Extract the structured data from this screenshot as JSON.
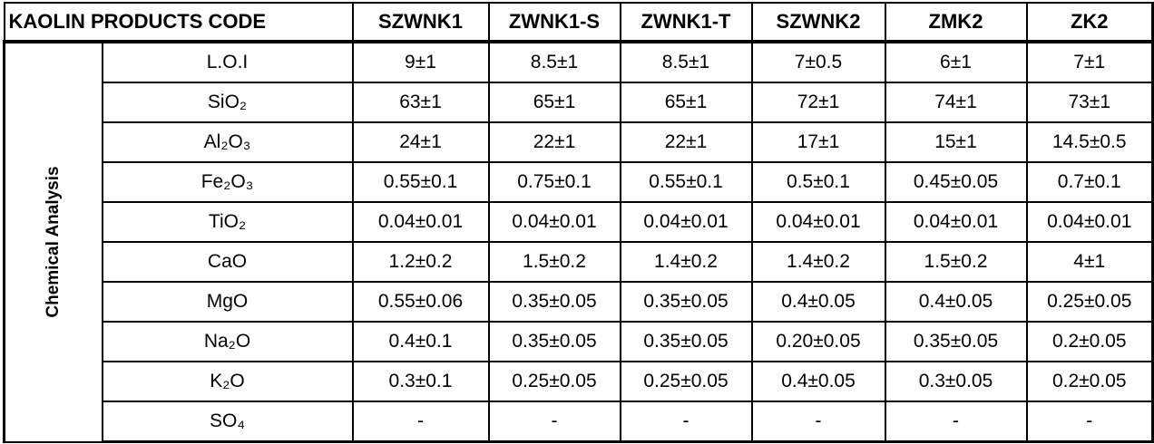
{
  "header": {
    "title": "KAOLIN PRODUCTS CODE",
    "columns": [
      "SZWNK1",
      "ZWNK1-S",
      "ZWNK1-T",
      "SZWNK2",
      "ZMK2",
      "ZK2"
    ]
  },
  "section_label": "Chemical Analysis",
  "rows": [
    {
      "label": "L.O.I",
      "values": [
        "9±1",
        "8.5±1",
        "8.5±1",
        "7±0.5",
        "6±1",
        "7±1"
      ]
    },
    {
      "label": "SiO₂",
      "values": [
        "63±1",
        "65±1",
        "65±1",
        "72±1",
        "74±1",
        "73±1"
      ]
    },
    {
      "label": "Al₂O₃",
      "values": [
        "24±1",
        "22±1",
        "22±1",
        "17±1",
        "15±1",
        "14.5±0.5"
      ]
    },
    {
      "label": "Fe₂O₃",
      "values": [
        "0.55±0.1",
        "0.75±0.1",
        "0.55±0.1",
        "0.5±0.1",
        "0.45±0.05",
        "0.7±0.1"
      ]
    },
    {
      "label": "TiO₂",
      "values": [
        "0.04±0.01",
        "0.04±0.01",
        "0.04±0.01",
        "0.04±0.01",
        "0.04±0.01",
        "0.04±0.01"
      ]
    },
    {
      "label": "CaO",
      "values": [
        "1.2±0.2",
        "1.5±0.2",
        "1.4±0.2",
        "1.4±0.2",
        "1.5±0.2",
        "4±1"
      ]
    },
    {
      "label": "MgO",
      "values": [
        "0.55±0.06",
        "0.35±0.05",
        "0.35±0.05",
        "0.4±0.05",
        "0.4±0.05",
        "0.25±0.05"
      ]
    },
    {
      "label": "Na₂O",
      "values": [
        "0.4±0.1",
        "0.35±0.05",
        "0.35±0.05",
        "0.20±0.05",
        "0.35±0.05",
        "0.2±0.05"
      ]
    },
    {
      "label": "K₂O",
      "values": [
        "0.3±0.1",
        "0.25±0.05",
        "0.25±0.05",
        "0.4±0.05",
        "0.3±0.05",
        "0.2±0.05"
      ]
    },
    {
      "label": "SO₄",
      "values": [
        "-",
        "-",
        "-",
        "-",
        "-",
        "-"
      ]
    }
  ]
}
